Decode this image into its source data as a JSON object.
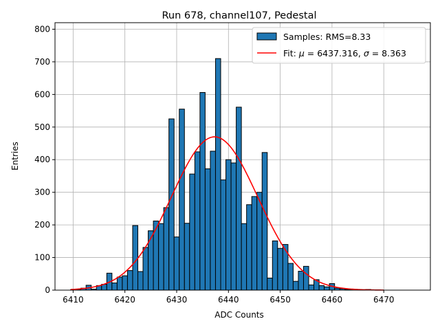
{
  "chart_data": {
    "type": "bar",
    "title": "Run 678, channel107, Pedestal",
    "xlabel": "ADC Counts",
    "ylabel": "Entries",
    "xlim": [
      6406.5,
      6479.0
    ],
    "ylim": [
      0,
      820
    ],
    "xticks": [
      6410,
      6420,
      6430,
      6440,
      6450,
      6460,
      6470
    ],
    "yticks": [
      0,
      100,
      200,
      300,
      400,
      500,
      600,
      700,
      800
    ],
    "grid": true,
    "legend_position": "top-right",
    "bin_width": 1,
    "bar_color": "#1f77b4",
    "fit_color": "#ff0000",
    "series": [
      {
        "name": "Samples: RMS=8.33",
        "type": "histogram",
        "bins": [
          6410,
          6411,
          6412,
          6413,
          6414,
          6415,
          6416,
          6417,
          6418,
          6419,
          6420,
          6421,
          6422,
          6423,
          6424,
          6425,
          6426,
          6427,
          6428,
          6429,
          6430,
          6431,
          6432,
          6433,
          6434,
          6435,
          6436,
          6437,
          6438,
          6439,
          6440,
          6441,
          6442,
          6443,
          6444,
          6445,
          6446,
          6447,
          6448,
          6449,
          6450,
          6451,
          6452,
          6453,
          6454,
          6455,
          6456,
          6457,
          6458,
          6459,
          6460,
          6461,
          6462,
          6463,
          6464,
          6465,
          6466,
          6467,
          6468,
          6469,
          6470
        ],
        "values": [
          1,
          2,
          6,
          15,
          3,
          14,
          18,
          52,
          22,
          40,
          44,
          60,
          198,
          57,
          131,
          182,
          212,
          204,
          253,
          525,
          163,
          555,
          205,
          356,
          424,
          606,
          372,
          426,
          710,
          338,
          400,
          390,
          561,
          204,
          262,
          287,
          300,
          422,
          37,
          151,
          128,
          140,
          82,
          27,
          58,
          73,
          16,
          32,
          14,
          10,
          20,
          6,
          4,
          2,
          1,
          1,
          0,
          2,
          0,
          0,
          0
        ]
      },
      {
        "name": "Fit: μ = 6437.316, σ = 8.363",
        "type": "gaussian",
        "mu": 6437.316,
        "sigma": 8.363,
        "amplitude": 470,
        "range": [
          6409.5,
          6470.0
        ]
      }
    ],
    "legend": {
      "samples_prefix": "Samples: RMS=8.33",
      "fit_prefix": "Fit: ",
      "fit_mu_symbol": "μ",
      "fit_mu_value": " = 6437.316, ",
      "fit_sigma_symbol": "σ",
      "fit_sigma_value": " = 8.363"
    }
  }
}
